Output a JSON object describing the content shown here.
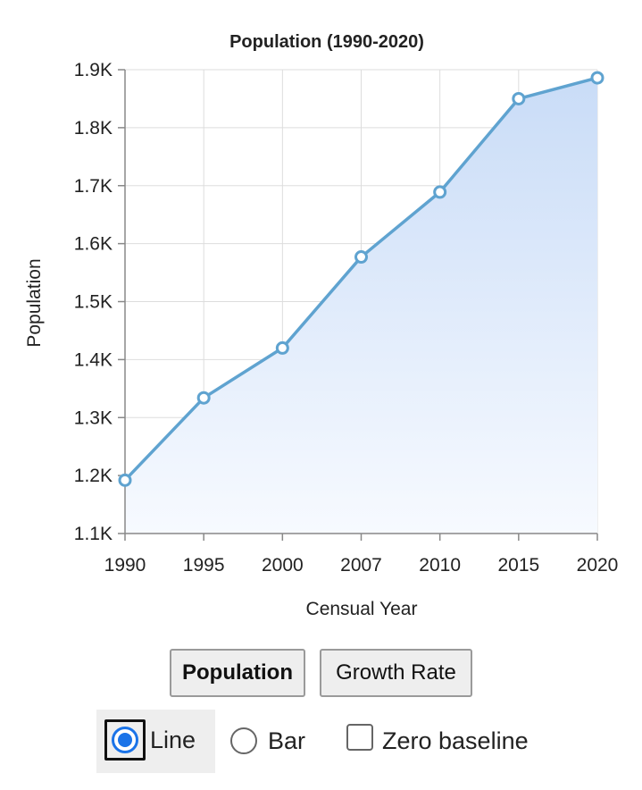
{
  "chart_data": {
    "type": "area",
    "title": "Population (1990-2020)",
    "xlabel": "Censual Year",
    "ylabel": "Population",
    "categories": [
      "1990",
      "1995",
      "2000",
      "2007",
      "2010",
      "2015",
      "2020"
    ],
    "series": [
      {
        "values": [
          1192,
          1334,
          1420,
          1577,
          1689,
          1850,
          1886
        ]
      }
    ],
    "ylim": [
      1100,
      1900
    ],
    "yticks": [
      1100,
      1200,
      1300,
      1400,
      1500,
      1600,
      1700,
      1800,
      1900
    ],
    "ytick_labels": [
      "1.1K",
      "1.2K",
      "1.3K",
      "1.4K",
      "1.5K",
      "1.6K",
      "1.7K",
      "1.8K",
      "1.9K"
    ],
    "grid": true,
    "line_color": "#5fa3d0",
    "fill_color_top": "#c9dcf7",
    "fill_color_bottom": "#f7faff"
  },
  "controls": {
    "metric_buttons": [
      {
        "label": "Population",
        "selected": true
      },
      {
        "label": "Growth Rate",
        "selected": false
      }
    ],
    "chart_type_options": [
      {
        "label": "Line",
        "checked": true
      },
      {
        "label": "Bar",
        "checked": false
      }
    ],
    "zero_baseline": {
      "label": "Zero baseline",
      "checked": false
    }
  }
}
